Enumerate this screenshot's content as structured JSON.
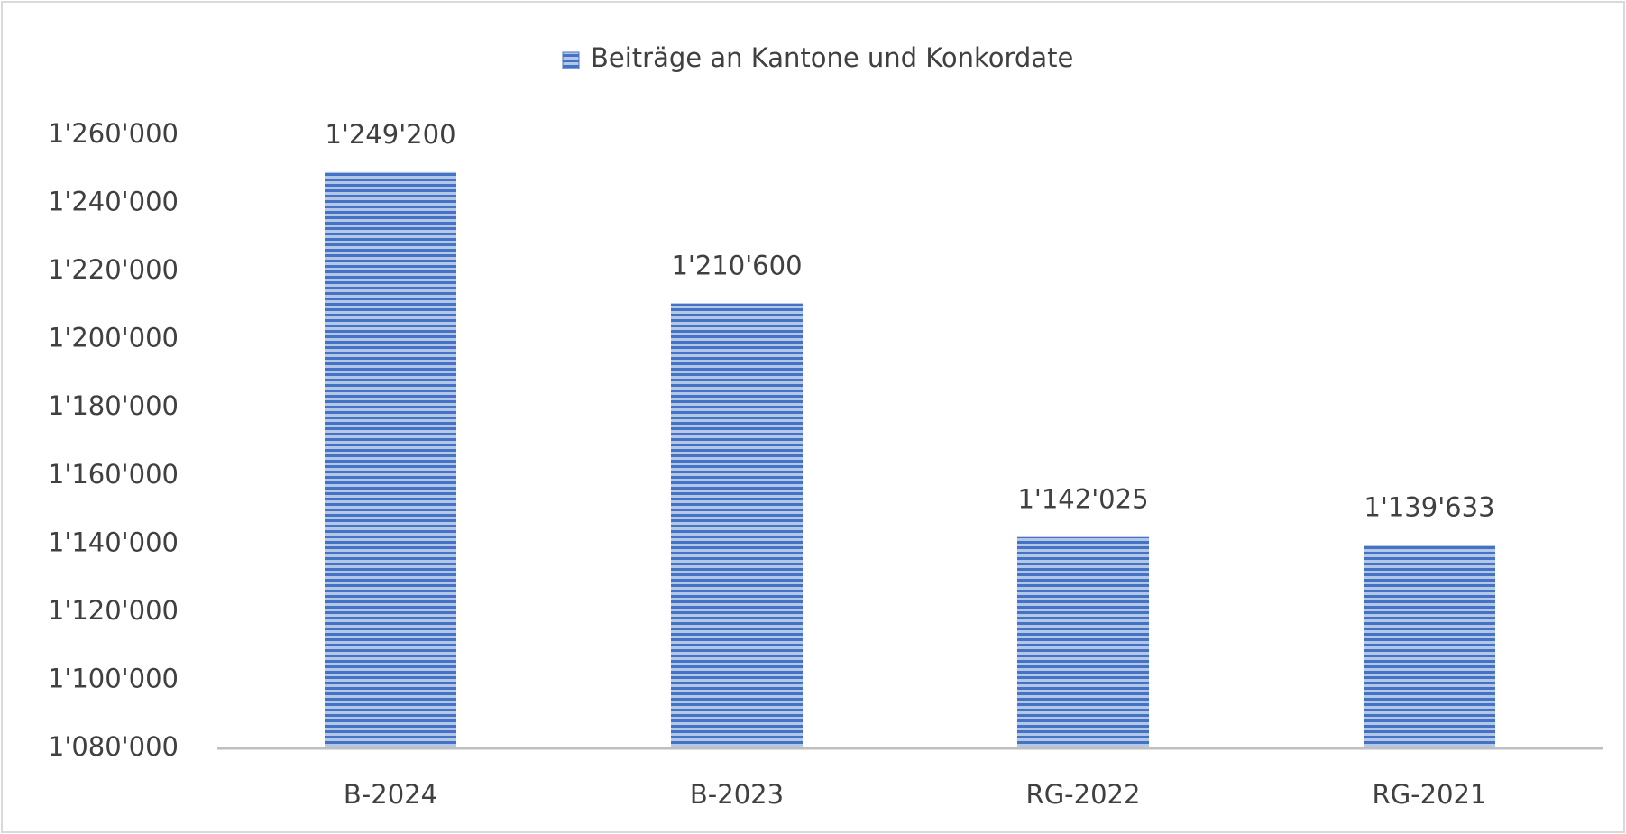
{
  "chart_data": {
    "type": "bar",
    "categories": [
      "B-2024",
      "B-2023",
      "RG-2022",
      "RG-2021"
    ],
    "series": [
      {
        "name": "Beiträge an Kantone und Konkordate",
        "color": "#4472c4",
        "values": [
          1249200,
          1210600,
          1142025,
          1139633
        ],
        "value_labels": [
          "1'249'200",
          "1'210'600",
          "1'142'025",
          "1'139'633"
        ]
      }
    ],
    "ylim": [
      1080000,
      1260000
    ],
    "yticks": [
      {
        "value": 1080000,
        "label": "1'080'000"
      },
      {
        "value": 1100000,
        "label": "1'100'000"
      },
      {
        "value": 1120000,
        "label": "1'120'000"
      },
      {
        "value": 1140000,
        "label": "1'140'000"
      },
      {
        "value": 1160000,
        "label": "1'160'000"
      },
      {
        "value": 1180000,
        "label": "1'180'000"
      },
      {
        "value": 1200000,
        "label": "1'200'000"
      },
      {
        "value": 1220000,
        "label": "1'220'000"
      },
      {
        "value": 1240000,
        "label": "1'240'000"
      },
      {
        "value": 1260000,
        "label": "1'260'000"
      }
    ],
    "grid": false,
    "legend": "top"
  }
}
